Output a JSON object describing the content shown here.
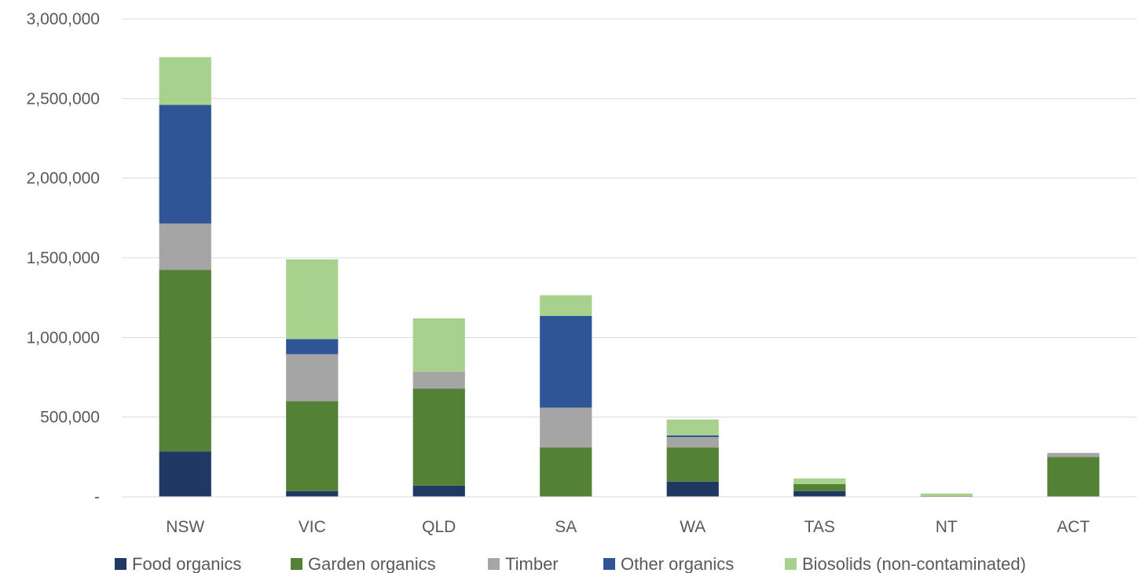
{
  "chart_data": {
    "type": "bar",
    "stacked": true,
    "title": "",
    "xlabel": "",
    "ylabel": "",
    "categories": [
      "NSW",
      "VIC",
      "QLD",
      "SA",
      "WA",
      "TAS",
      "NT",
      "ACT"
    ],
    "ylim": [
      0,
      3000000
    ],
    "yticks": [
      0,
      500000,
      1000000,
      1500000,
      2000000,
      2500000,
      3000000
    ],
    "ytick_labels": [
      "-",
      "500,000",
      "1,000,000",
      "1,500,000",
      "2,000,000",
      "2,500,000",
      "3,000,000"
    ],
    "grid": true,
    "legend_position": "bottom",
    "series": [
      {
        "name": "Food organics",
        "color": "#203864",
        "values": [
          285000,
          35000,
          70000,
          0,
          95000,
          35000,
          0,
          0
        ]
      },
      {
        "name": "Garden organics",
        "color": "#538135",
        "values": [
          1140000,
          565000,
          610000,
          310000,
          215000,
          45000,
          5000,
          250000
        ]
      },
      {
        "name": "Timber",
        "color": "#a5a5a5",
        "values": [
          290000,
          295000,
          105000,
          250000,
          65000,
          0,
          0,
          25000
        ]
      },
      {
        "name": "Other organics",
        "color": "#2f5597",
        "values": [
          745000,
          95000,
          0,
          575000,
          10000,
          0,
          0,
          0
        ]
      },
      {
        "name": "Biosolids (non-contaminated)",
        "color": "#a9d18e",
        "values": [
          300000,
          500000,
          335000,
          130000,
          100000,
          35000,
          15000,
          0
        ]
      }
    ]
  }
}
